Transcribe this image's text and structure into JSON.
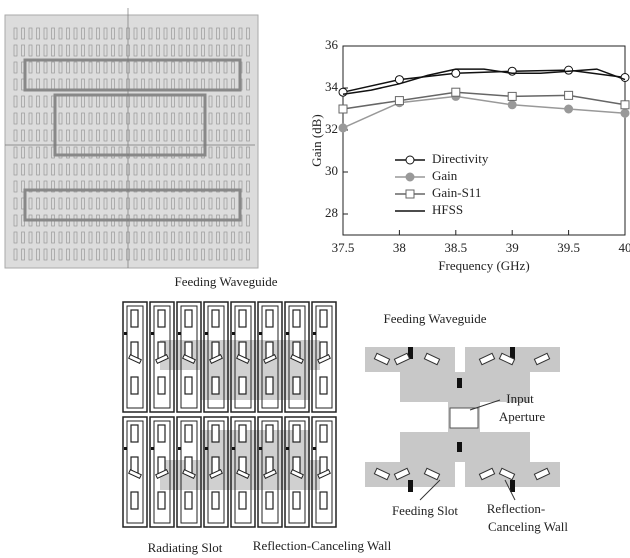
{
  "chart_data": {
    "type": "line",
    "x_label": "Frequency (GHz)",
    "y_label": "Gain (dB)",
    "xlim": [
      37.5,
      40
    ],
    "xticks": [
      37.5,
      38,
      38.5,
      39,
      39.5,
      40
    ],
    "ylim": [
      27,
      36
    ],
    "yticks": [
      28,
      30,
      32,
      34,
      36
    ],
    "legend": "lower-left",
    "series": [
      {
        "name": "Directivity",
        "color": "#111111",
        "marker": "circle-open",
        "x": [
          37.5,
          38,
          38.5,
          39,
          39.5,
          40
        ],
        "values": [
          33.8,
          34.4,
          34.7,
          34.8,
          34.85,
          34.5
        ]
      },
      {
        "name": "Gain",
        "color": "#999999",
        "marker": "circle-filled",
        "x": [
          37.5,
          38,
          38.5,
          39,
          39.5,
          40
        ],
        "values": [
          32.1,
          33.3,
          33.6,
          33.2,
          33.0,
          32.8
        ]
      },
      {
        "name": "Gain-S11",
        "color": "#666666",
        "marker": "square-open",
        "x": [
          37.5,
          38,
          38.5,
          39,
          39.5,
          40
        ],
        "values": [
          33.0,
          33.4,
          33.8,
          33.6,
          33.65,
          33.2
        ]
      },
      {
        "name": "HFSS",
        "color": "#111111",
        "marker": "none",
        "x": [
          37.5,
          37.75,
          38,
          38.25,
          38.5,
          38.75,
          39,
          39.25,
          39.5,
          39.75,
          40
        ],
        "values": [
          33.7,
          33.9,
          34.2,
          34.6,
          34.9,
          34.9,
          34.7,
          34.7,
          34.8,
          34.9,
          34.4
        ]
      }
    ]
  },
  "array_diagram": {
    "feeding_waveguide": "Feeding Waveguide",
    "radiating_slot": "Radiating Slot",
    "reflection_wall": "Reflection-Canceling Wall"
  },
  "feed_diagram": {
    "feeding_waveguide": "Feeding Waveguide",
    "input_aperture": [
      "Input",
      "Aperture"
    ],
    "feeding_slot": "Feeding Slot",
    "reflection_wall": [
      "Reflection-",
      "Canceling Wall"
    ]
  }
}
